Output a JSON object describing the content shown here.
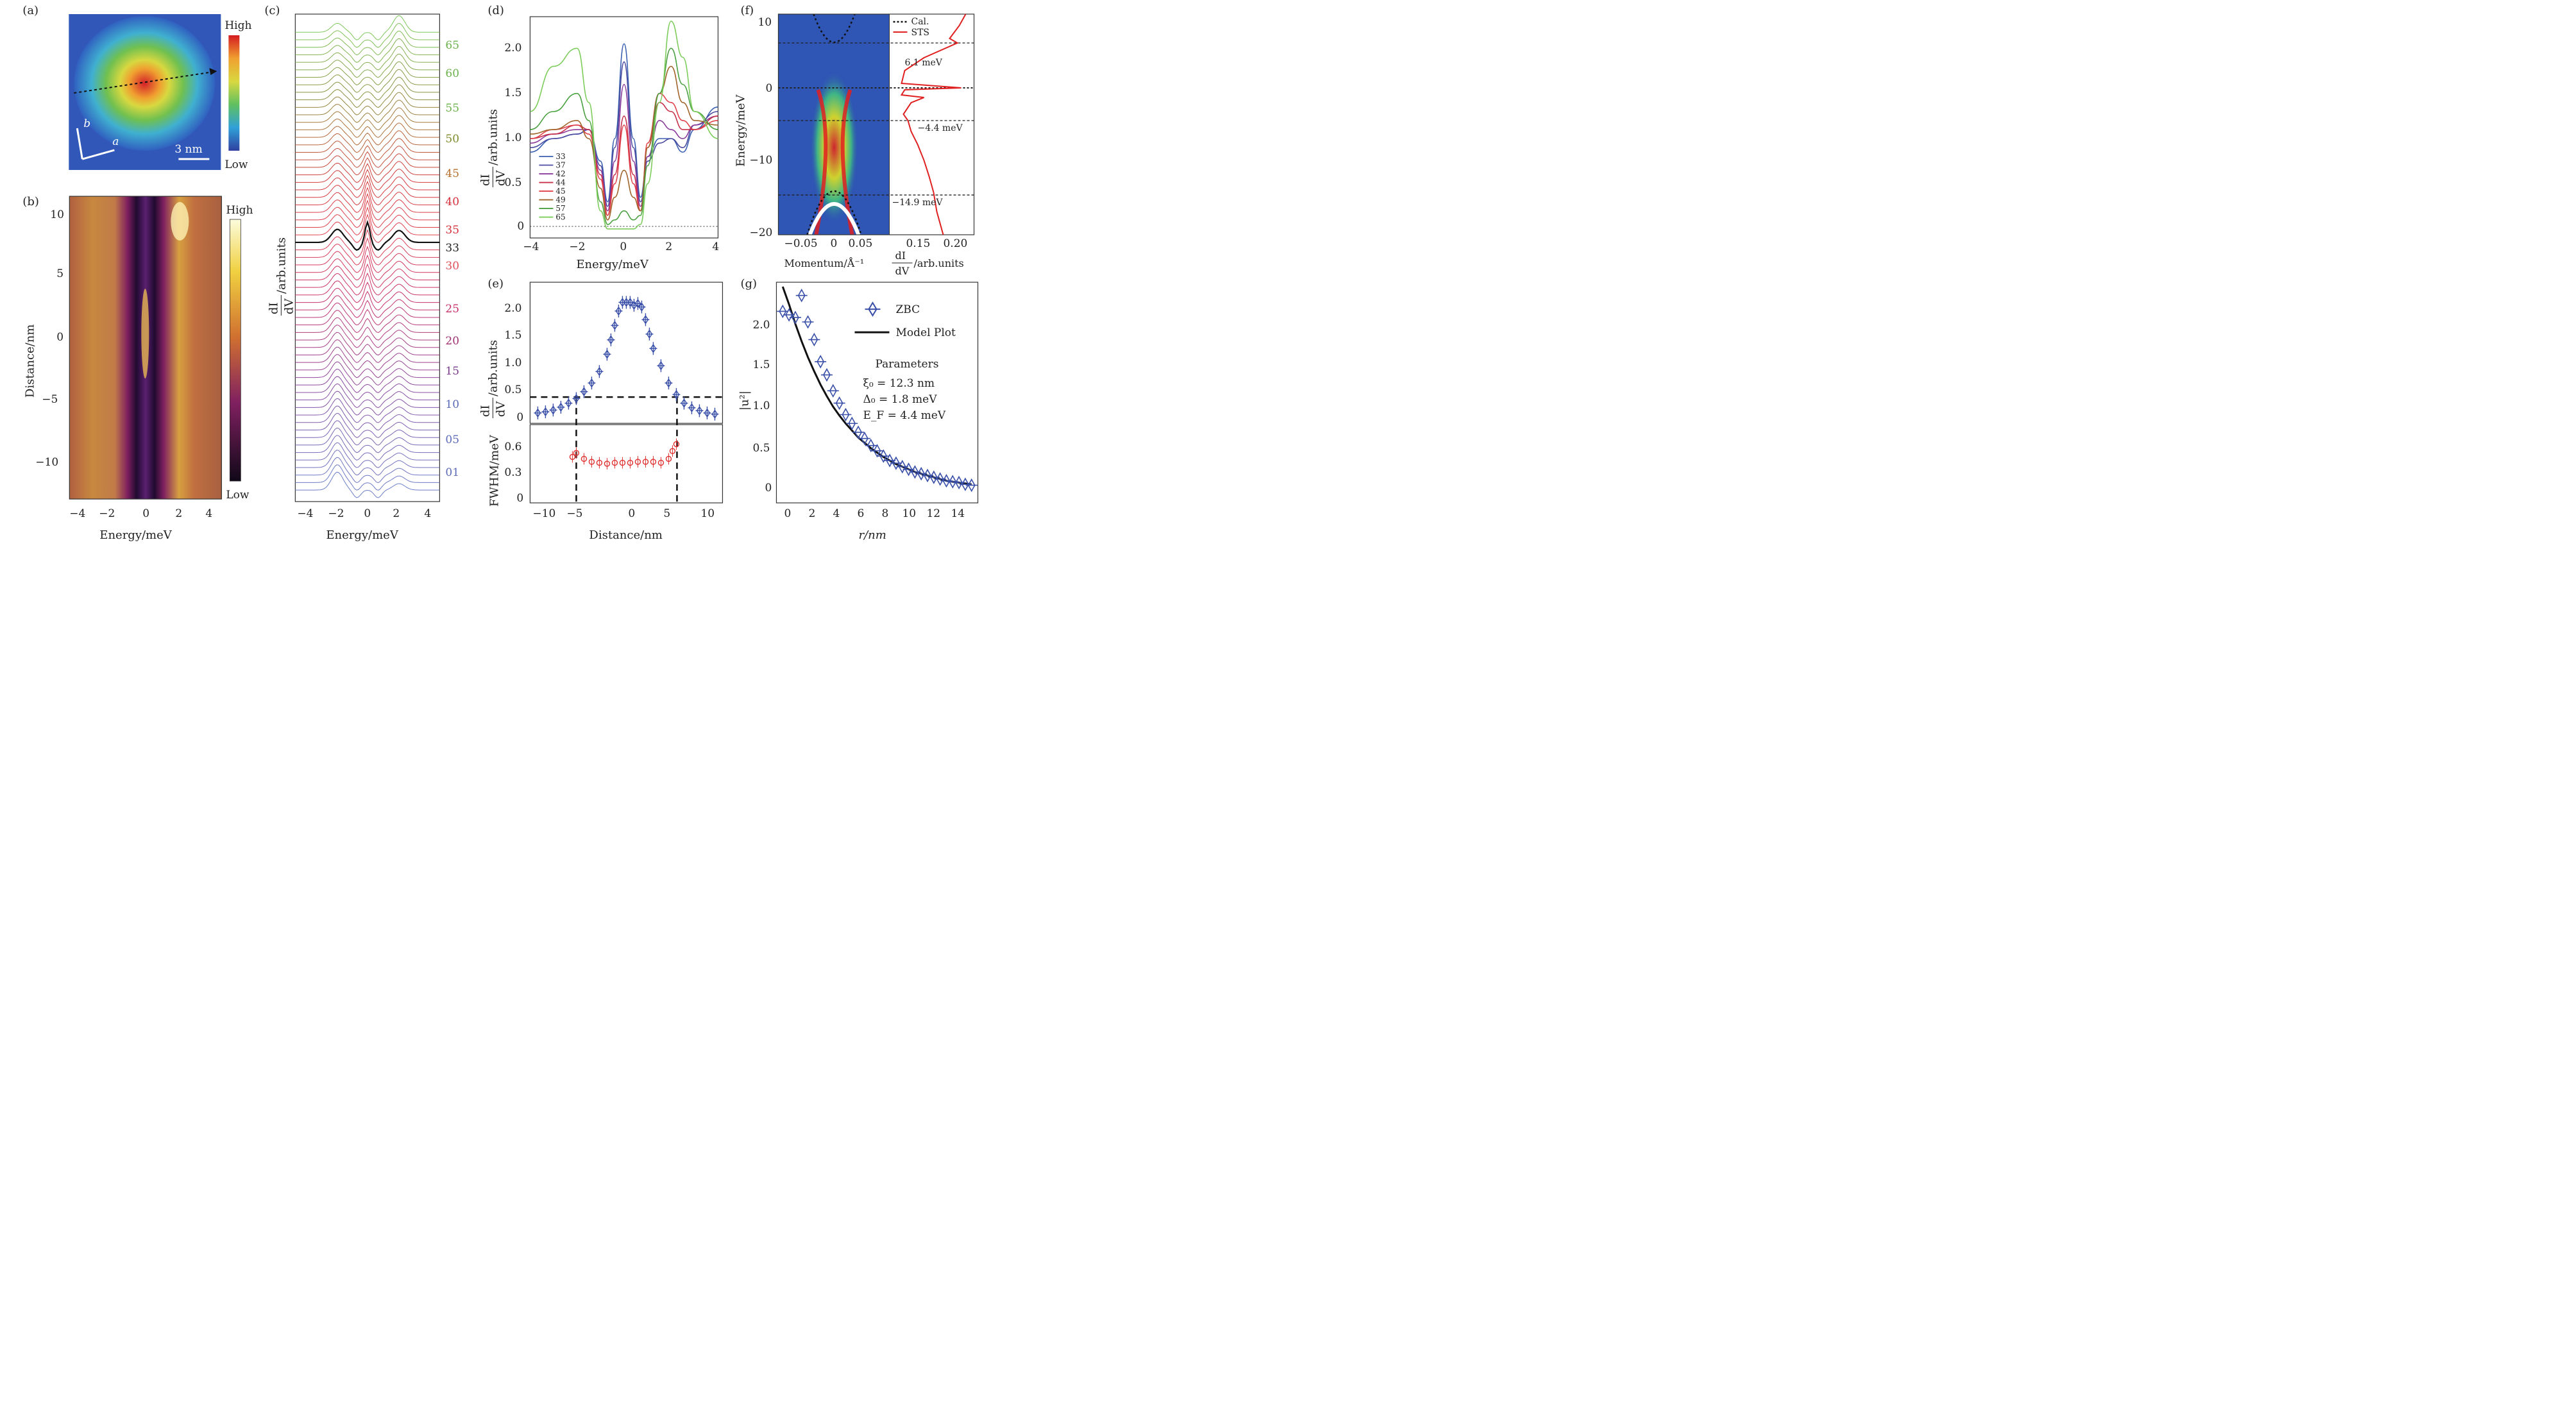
{
  "panels": {
    "a": {
      "label": "(a)",
      "cbar_high": "High",
      "cbar_low": "Low",
      "scale": "3 nm",
      "axis_a": "a",
      "axis_b": "b"
    },
    "b": {
      "label": "(b)",
      "cbar_high": "High",
      "cbar_low": "Low",
      "xlabel": "Energy/meV",
      "ylabel": "Distance/nm",
      "xticks": [
        "−4",
        "−2",
        "0",
        "2",
        "4"
      ],
      "yticks": [
        "10",
        "5",
        "0",
        "−5",
        "−10"
      ]
    },
    "c": {
      "label": "(c)",
      "xlabel": "Energy/meV",
      "ylabel_top": "dI",
      "ylabel_bot": "dV",
      "ylabel_unit": "/arb.units",
      "xticks": [
        "−4",
        "−2",
        "0",
        "2",
        "4"
      ],
      "index_labels": [
        {
          "t": "65",
          "c": "#6bb24a"
        },
        {
          "t": "60",
          "c": "#6bb24a"
        },
        {
          "t": "55",
          "c": "#6bb24a"
        },
        {
          "t": "50",
          "c": "#7d8a2c"
        },
        {
          "t": "45",
          "c": "#b8702c"
        },
        {
          "t": "40",
          "c": "#d62f3a"
        },
        {
          "t": "35",
          "c": "#d62f3a"
        },
        {
          "t": "33",
          "c": "#222222"
        },
        {
          "t": "30",
          "c": "#e0505a"
        },
        {
          "t": "25",
          "c": "#c8306a"
        },
        {
          "t": "20",
          "c": "#a03070"
        },
        {
          "t": "15",
          "c": "#7a3a8a"
        },
        {
          "t": "10",
          "c": "#5a6ab8"
        },
        {
          "t": "05",
          "c": "#5a6ab8"
        },
        {
          "t": "01",
          "c": "#5a6ab8"
        }
      ]
    },
    "d": {
      "label": "(d)",
      "xlabel": "Energy/meV",
      "ylabel_top": "dI",
      "ylabel_bot": "dV",
      "ylabel_unit": "/arb.units",
      "xticks": [
        "−4",
        "−2",
        "0",
        "2",
        "4"
      ],
      "yticks": [
        "0",
        "0.5",
        "1.0",
        "1.5",
        "2.0"
      ],
      "legend": [
        {
          "t": "33",
          "c": "#3a5fb0"
        },
        {
          "t": "37",
          "c": "#4a4aa0"
        },
        {
          "t": "42",
          "c": "#8a3a9a"
        },
        {
          "t": "44",
          "c": "#c8304a"
        },
        {
          "t": "45",
          "c": "#e0404a"
        },
        {
          "t": "49",
          "c": "#a0642a"
        },
        {
          "t": "57",
          "c": "#4aa040"
        },
        {
          "t": "65",
          "c": "#7ccc5a"
        }
      ]
    },
    "e": {
      "label": "(e)",
      "xlabel": "Distance/nm",
      "ylabel_top": "dI",
      "ylabel_bot": "dV",
      "ylabel_unit": "/arb.units",
      "ylabel2": "FWHM/meV",
      "xticks": [
        "−10",
        "−5",
        "0",
        "5",
        "10"
      ],
      "yticks": [
        "0",
        "0.5",
        "1.0",
        "1.5",
        "2.0"
      ],
      "yticks2": [
        "0",
        "0.3",
        "0.6"
      ]
    },
    "f": {
      "label": "(f)",
      "ylabel": "Energy/meV",
      "xlabel1": "Momentum/Å⁻¹",
      "xlabel2_top": "dI",
      "xlabel2_bot": "dV",
      "xlabel2_unit": "/arb.units",
      "xticks1": [
        "−0.05",
        "0",
        "0.05"
      ],
      "xticks2": [
        "0.15",
        "0.20"
      ],
      "yticks": [
        "10",
        "0",
        "−10",
        "−20"
      ],
      "legend_cal": "Cal.",
      "legend_sts": "STS",
      "levels": [
        "6.1 meV",
        "−4.4 meV",
        "−14.9 meV"
      ]
    },
    "g": {
      "label": "(g)",
      "xlabel": "r/nm",
      "ylabel": "|u²|",
      "legend_zbc": "ZBC",
      "legend_model": "Model Plot",
      "params_title": "Parameters",
      "param1": "ξ₀ = 12.3 nm",
      "param2": "Δ₀ = 1.8 meV",
      "param3": "E_F = 4.4 meV",
      "xticks": [
        "0",
        "2",
        "4",
        "6",
        "8",
        "10",
        "12",
        "14"
      ],
      "yticks": [
        "0",
        "0.5",
        "1.0",
        "1.5",
        "2.0"
      ]
    }
  },
  "colors": {
    "blue": "#3a50a8",
    "red": "#e03030",
    "black": "#111111"
  },
  "chart_data": [
    {
      "type": "line",
      "panel": "d",
      "title": "",
      "xlabel": "Energy/meV",
      "ylabel": "dI/dV /arb.units",
      "xlim": [
        -4,
        4
      ],
      "ylim": [
        -0.1,
        2.35
      ],
      "x": [
        -4,
        -3,
        -2,
        -1.5,
        -1,
        -0.7,
        -0.4,
        0,
        0.4,
        0.7,
        1,
        1.5,
        2,
        2.5,
        3,
        4
      ],
      "series": [
        {
          "name": "33",
          "values": [
            0.85,
            1.0,
            1.05,
            1.1,
            0.75,
            0.3,
            1.0,
            2.05,
            1.0,
            0.35,
            0.8,
            1.0,
            1.0,
            0.85,
            1.1,
            1.35
          ]
        },
        {
          "name": "37",
          "values": [
            0.9,
            1.0,
            1.05,
            1.1,
            0.7,
            0.25,
            0.9,
            1.85,
            0.9,
            0.3,
            0.75,
            0.95,
            1.0,
            0.9,
            1.15,
            1.3
          ]
        },
        {
          "name": "42",
          "values": [
            0.95,
            1.05,
            1.1,
            1.1,
            0.65,
            0.2,
            0.75,
            1.6,
            0.75,
            0.25,
            0.8,
            1.2,
            1.1,
            1.0,
            1.15,
            1.25
          ]
        },
        {
          "name": "44",
          "values": [
            1.0,
            1.05,
            1.15,
            1.1,
            0.6,
            0.15,
            0.6,
            1.25,
            0.6,
            0.2,
            0.9,
            1.4,
            1.3,
            1.1,
            1.1,
            1.25
          ]
        },
        {
          "name": "45",
          "values": [
            1.0,
            1.1,
            1.15,
            1.05,
            0.55,
            0.15,
            0.5,
            1.15,
            0.5,
            0.2,
            0.95,
            1.5,
            1.4,
            1.2,
            1.1,
            1.2
          ]
        },
        {
          "name": "49",
          "values": [
            1.05,
            1.1,
            1.2,
            1.0,
            0.45,
            0.1,
            0.35,
            0.65,
            0.35,
            0.2,
            0.9,
            1.5,
            1.8,
            1.4,
            1.2,
            1.15
          ]
        },
        {
          "name": "57",
          "values": [
            1.1,
            1.3,
            1.5,
            1.2,
            0.3,
            0.05,
            0.1,
            0.2,
            0.1,
            0.15,
            0.7,
            1.5,
            2.0,
            1.6,
            1.3,
            1.1
          ]
        },
        {
          "name": "65",
          "values": [
            1.3,
            1.8,
            2.0,
            1.4,
            0.2,
            0.0,
            0.0,
            0.0,
            0.0,
            0.05,
            0.5,
            1.4,
            2.3,
            1.9,
            1.3,
            1.0
          ]
        }
      ]
    },
    {
      "type": "scatter",
      "panel": "e-top",
      "title": "",
      "xlabel": "Distance/nm",
      "ylabel": "dI/dV /arb.units",
      "xlim": [
        -13,
        12
      ],
      "ylim": [
        -0.1,
        2.35
      ],
      "x": [
        -12,
        -11,
        -10,
        -9,
        -8,
        -7,
        -6,
        -5,
        -4,
        -3,
        -2.5,
        -2,
        -1.5,
        -1,
        -0.5,
        0,
        0.5,
        1,
        1.5,
        2,
        2.5,
        3,
        4,
        5,
        6,
        7,
        8,
        9,
        10,
        11
      ],
      "values": [
        0.08,
        0.1,
        0.13,
        0.18,
        0.25,
        0.33,
        0.45,
        0.6,
        0.8,
        1.1,
        1.35,
        1.6,
        1.85,
        2.0,
        2.0,
        2.0,
        1.95,
        1.98,
        1.92,
        1.7,
        1.45,
        1.2,
        0.9,
        0.6,
        0.4,
        0.25,
        0.17,
        0.12,
        0.08,
        0.06
      ],
      "threshold": 0.38
    },
    {
      "type": "scatter",
      "panel": "e-bottom",
      "title": "",
      "xlabel": "Distance/nm",
      "ylabel": "FWHM/meV",
      "xlim": [
        -13,
        12
      ],
      "ylim": [
        -0.05,
        0.75
      ],
      "x": [
        -7.5,
        -7,
        -6,
        -5,
        -4,
        -3,
        -2,
        -1,
        0,
        1,
        2,
        3,
        4,
        5,
        5.5,
        6
      ],
      "values": [
        0.42,
        0.46,
        0.4,
        0.37,
        0.36,
        0.35,
        0.36,
        0.36,
        0.36,
        0.37,
        0.37,
        0.37,
        0.36,
        0.4,
        0.48,
        0.55
      ]
    },
    {
      "type": "scatter",
      "panel": "g",
      "title": "",
      "xlabel": "r/nm",
      "ylabel": "|u²|",
      "xlim": [
        -0.5,
        15.5
      ],
      "ylim": [
        -0.15,
        2.35
      ],
      "x": [
        0,
        0.5,
        1,
        1.5,
        2,
        2.5,
        3,
        3.5,
        4,
        4.5,
        5,
        5.5,
        6,
        6.5,
        7,
        7.5,
        8,
        8.5,
        9,
        9.5,
        10,
        10.5,
        11,
        11.5,
        12,
        12.5,
        13,
        13.5,
        14,
        14.5,
        15
      ],
      "series": [
        {
          "name": "ZBC",
          "values": [
            2.02,
            1.98,
            1.95,
            2.2,
            1.9,
            1.7,
            1.45,
            1.3,
            1.12,
            0.98,
            0.85,
            0.75,
            0.65,
            0.58,
            0.5,
            0.44,
            0.38,
            0.33,
            0.3,
            0.26,
            0.23,
            0.2,
            0.18,
            0.16,
            0.14,
            0.12,
            0.1,
            0.09,
            0.08,
            0.06,
            0.05
          ]
        },
        {
          "name": "Model Plot",
          "values": [
            2.3,
            2.1,
            1.88,
            1.68,
            1.5,
            1.34,
            1.19,
            1.06,
            0.94,
            0.84,
            0.75,
            0.67,
            0.59,
            0.53,
            0.47,
            0.42,
            0.37,
            0.33,
            0.29,
            0.26,
            0.23,
            0.2,
            0.18,
            0.16,
            0.14,
            0.12,
            0.1,
            0.09,
            0.08,
            0.07,
            0.06
          ]
        }
      ],
      "parameters": {
        "xi0_nm": 12.3,
        "delta0_meV": 1.8,
        "EF_meV": 4.4
      }
    },
    {
      "type": "line",
      "panel": "f-right",
      "title": "",
      "xlabel": "dI/dV /arb.units",
      "ylabel": "Energy/meV",
      "xlim": [
        0.1,
        0.23
      ],
      "ylim": [
        -20,
        11
      ],
      "levels_meV": [
        6.1,
        0,
        -4.4,
        -14.9
      ]
    }
  ]
}
